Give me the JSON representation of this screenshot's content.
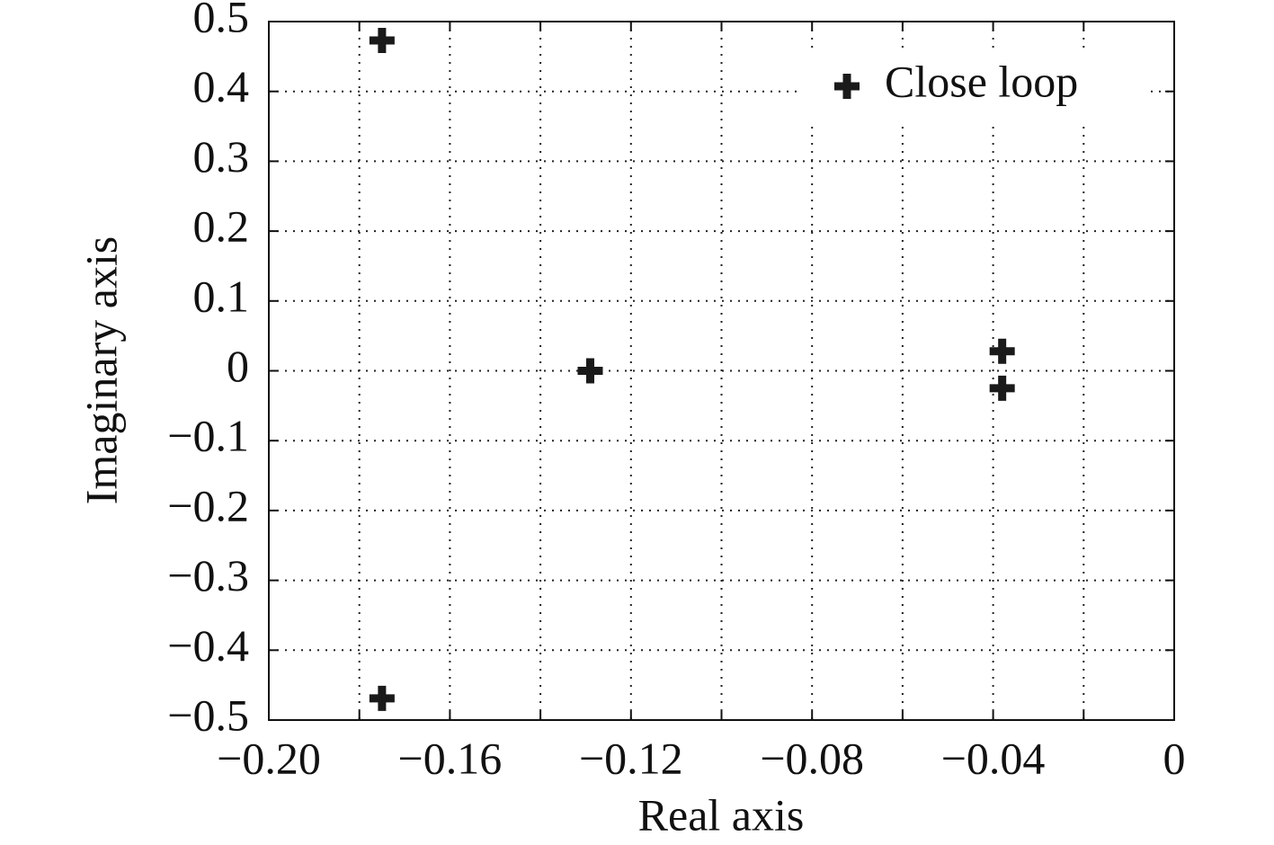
{
  "chart_data": {
    "type": "scatter",
    "xlabel": "Real axis",
    "ylabel": "Imaginary axis",
    "xlim": [
      -0.2,
      0
    ],
    "ylim": [
      -0.5,
      0.5
    ],
    "xticks": [
      {
        "value": -0.2,
        "label": "−0.20"
      },
      {
        "value": -0.16,
        "label": "−0.16"
      },
      {
        "value": -0.12,
        "label": "−0.12"
      },
      {
        "value": -0.08,
        "label": "−0.08"
      },
      {
        "value": -0.04,
        "label": "−0.04"
      },
      0
    ],
    "xminor": [
      -0.18,
      -0.14,
      -0.1,
      -0.06,
      -0.02
    ],
    "yticks": [
      0.5,
      0.4,
      0.3,
      0.2,
      0.1,
      0,
      {
        "value": -0.1,
        "label": "−0.1"
      },
      {
        "value": -0.2,
        "label": "−0.2"
      },
      {
        "value": -0.3,
        "label": "−0.3"
      },
      {
        "value": -0.4,
        "label": "−0.4"
      },
      {
        "value": -0.5,
        "label": "−0.5"
      }
    ],
    "grid": true,
    "legend": "upper right",
    "series": [
      {
        "name": "Close loop",
        "color": "#1a1a1a",
        "x": [
          -0.175,
          -0.175,
          -0.129,
          -0.038,
          -0.038
        ],
        "values": [
          0.473,
          -0.469,
          0,
          0.028,
          -0.025
        ]
      }
    ]
  }
}
